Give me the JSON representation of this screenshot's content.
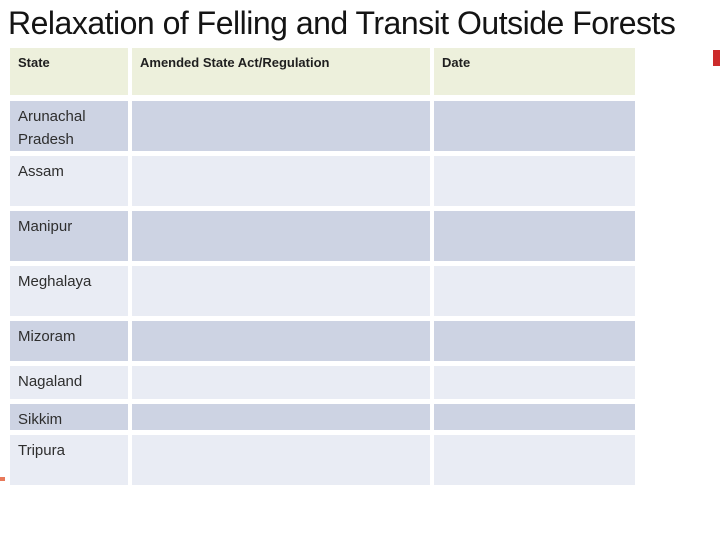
{
  "slide": {
    "title": "Relaxation of Felling and Transit Outside Forests"
  },
  "table": {
    "columns": {
      "state": "State",
      "act": "Amended State Act/Regulation",
      "date": "Date"
    },
    "rows": [
      {
        "state": "Arunachal Pradesh",
        "act": "",
        "date": ""
      },
      {
        "state": "Assam",
        "act": "",
        "date": ""
      },
      {
        "state": "Manipur",
        "act": "",
        "date": ""
      },
      {
        "state": "Meghalaya",
        "act": "",
        "date": ""
      },
      {
        "state": "Mizoram",
        "act": "",
        "date": ""
      },
      {
        "state": "Nagaland",
        "act": "",
        "date": ""
      },
      {
        "state": "Sikkim",
        "act": "",
        "date": ""
      },
      {
        "state": "Tripura",
        "act": "",
        "date": ""
      }
    ]
  },
  "colors": {
    "header_bg": "#edf0dc",
    "band_dark": "#cdd3e3",
    "band_light": "#e9ecf4",
    "title_text": "#141414",
    "accent_right": "#cc2b2b",
    "accent_left": "#e8795a"
  }
}
